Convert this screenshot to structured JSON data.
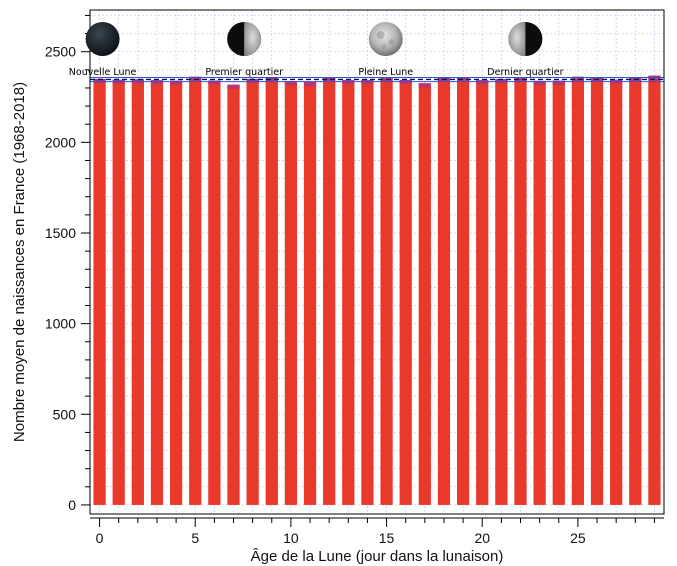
{
  "chart_data": {
    "type": "bar",
    "title": "",
    "xlabel": "Âge de la Lune (jour dans la lunaison)",
    "ylabel": "Nombre moyen de naissances en France (1968-2018)",
    "x": [
      0,
      1,
      2,
      3,
      4,
      5,
      6,
      7,
      8,
      9,
      10,
      11,
      12,
      13,
      14,
      15,
      16,
      17,
      18,
      19,
      20,
      21,
      22,
      23,
      24,
      25,
      26,
      27,
      28,
      29
    ],
    "values": [
      2350,
      2345,
      2348,
      2343,
      2340,
      2362,
      2341,
      2318,
      2350,
      2358,
      2338,
      2333,
      2357,
      2343,
      2344,
      2354,
      2344,
      2326,
      2356,
      2357,
      2343,
      2349,
      2354,
      2339,
      2340,
      2362,
      2358,
      2345,
      2360,
      2368
    ],
    "xlim": [
      -0.5,
      29.5
    ],
    "ylim": [
      -50,
      2730
    ],
    "xticks": [
      0,
      5,
      10,
      15,
      20,
      25
    ],
    "yticks": [
      0,
      500,
      1000,
      1500,
      2000,
      2500
    ],
    "mean_line": 2347,
    "band": [
      2335,
      2358
    ],
    "grid": true,
    "colors": {
      "bar": "#e8392b",
      "bar_top": "#b3367a",
      "mean": "#0a0a5c",
      "band": "#3a4fd8",
      "grid": "#c5c9ee"
    },
    "phases": [
      {
        "label": "Nouvelle Lune",
        "day": 0,
        "icon": "new-moon-icon"
      },
      {
        "label": "Premier quartier",
        "day": 7.4,
        "icon": "first-quarter-moon-icon"
      },
      {
        "label": "Pleine Lune",
        "day": 14.8,
        "icon": "full-moon-icon"
      },
      {
        "label": "Dernier quartier",
        "day": 22.1,
        "icon": "last-quarter-moon-icon"
      }
    ]
  }
}
